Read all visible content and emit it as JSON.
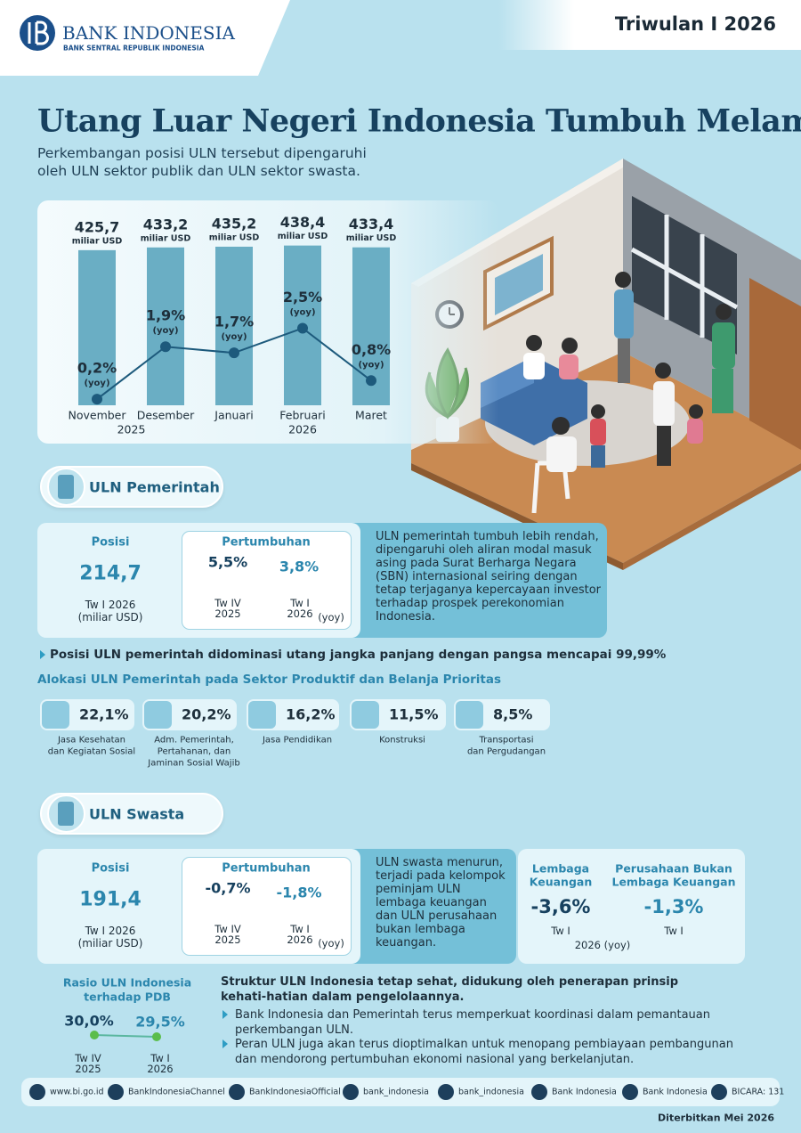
{
  "header": {
    "logo_name": "BANK INDONESIA",
    "logo_tagline": "BANK SENTRAL REPUBLIK INDONESIA",
    "period": "Triwulan I 2026"
  },
  "title": "Utang Luar Negeri Indonesia Tumbuh Melambat",
  "subtitle": [
    "Perkembangan posisi ULN tersebut dipengaruhi",
    "oleh ULN sektor publik dan ULN sektor swasta."
  ],
  "chart_data": {
    "type": "bar-line",
    "categories": [
      "November",
      "Desember",
      "Januari",
      "Februari",
      "Maret"
    ],
    "category_years": [
      "2025",
      null,
      null,
      "2026",
      null
    ],
    "ylim": [
      0,
      440
    ],
    "y2lim": [
      0,
      5.2
    ],
    "series": [
      {
        "color": "#6aaec4",
        "values": [
          425.7,
          433.2,
          435.2,
          438.4,
          433.4
        ],
        "value_labels": [
          "425,7",
          "433,2",
          "435,2",
          "438,4",
          "433,4"
        ],
        "unit_label": "miliar USD"
      },
      {
        "color": "#1d5a7c",
        "axis": "y2",
        "values": [
          0.2,
          1.9,
          1.7,
          2.5,
          0.8
        ],
        "value_labels": [
          "0,2%",
          "1,9%",
          "1,7%",
          "2,5%",
          "0,8%"
        ],
        "unit_label": "(yoy)"
      }
    ]
  },
  "pemerintah": {
    "heading": "ULN Pemerintah",
    "position": {
      "label": "Posisi",
      "value": "214,7",
      "period": "Tw I 2026",
      "unit": "(miliar USD)"
    },
    "growth": {
      "label": "Pertumbuhan",
      "values": [
        "5,5%",
        "3,8%"
      ],
      "periods": [
        {
          "quarter": "Tw IV",
          "year": "2025"
        },
        {
          "quarter": "Tw I",
          "year": "2026"
        }
      ],
      "unit": "(yoy)"
    },
    "description": "ULN pemerintah tumbuh lebih rendah, dipengaruhi oleh aliran modal masuk asing pada Surat Berharga Negara (SBN) internasional seiring dengan tetap terjaganya kepercayaan investor terhadap prospek perekonomian Indonesia.",
    "highlight": "Posisi ULN pemerintah didominasi utang jangka panjang dengan pangsa mencapai 99,99%",
    "allocation_title": "Alokasi ULN Pemerintah pada Sektor Produktif dan Belanja Prioritas",
    "allocation": [
      {
        "value": "22,1%",
        "label": [
          "Jasa Kesehatan",
          "dan Kegiatan Sosial"
        ]
      },
      {
        "value": "20,2%",
        "label": [
          "Adm. Pemerintah,",
          "Pertahanan, dan",
          "Jaminan Sosial Wajib"
        ]
      },
      {
        "value": "16,2%",
        "label": [
          "Jasa Pendidikan"
        ]
      },
      {
        "value": "11,5%",
        "label": [
          "Konstruksi"
        ]
      },
      {
        "value": "8,5%",
        "label": [
          "Transportasi",
          "dan Pergudangan"
        ]
      }
    ]
  },
  "swasta": {
    "heading": "ULN Swasta",
    "position": {
      "label": "Posisi",
      "value": "191,4",
      "period": "Tw I 2026",
      "unit": "(miliar USD)"
    },
    "growth": {
      "label": "Pertumbuhan",
      "values": [
        "-0,7%",
        "-1,8%"
      ],
      "periods": [
        {
          "quarter": "Tw IV",
          "year": "2025"
        },
        {
          "quarter": "Tw I",
          "year": "2026"
        }
      ],
      "unit": "(yoy)"
    },
    "description": "ULN swasta menurun, terjadi pada kelompok peminjam ULN lembaga keuangan dan ULN perusahaan bukan lembaga keuangan.",
    "breakdown": {
      "items": [
        {
          "label": [
            "Lembaga",
            "Keuangan"
          ],
          "value": "-3,6%",
          "period": "Tw I"
        },
        {
          "label": [
            "Perusahaan Bukan",
            "Lembaga Keuangan"
          ],
          "value": "-1,3%",
          "period": "Tw I"
        }
      ],
      "footnote": "2026 (yoy)"
    }
  },
  "ratio": {
    "title": [
      "Rasio ULN Indonesia",
      "terhadap PDB"
    ],
    "values": [
      "30,0%",
      "29,5%"
    ],
    "periods": [
      {
        "quarter": "Tw IV",
        "year": "2025"
      },
      {
        "quarter": "Tw I",
        "year": "2026"
      }
    ]
  },
  "closing": {
    "lead": "Struktur ULN Indonesia tetap sehat, didukung oleh penerapan prinsip kehati-hatian dalam pengelolaannya.",
    "bullets": [
      "Bank Indonesia dan Pemerintah terus memperkuat koordinasi dalam pemantauan perkembangan ULN.",
      "Peran ULN juga akan terus dioptimalkan untuk menopang pembiayaan pembangunan dan mendorong pertumbuhan ekonomi nasional yang berkelanjutan."
    ]
  },
  "footer": {
    "links": [
      "www.bi.go.id",
      "BankIndonesiaChannel",
      "BankIndonesiaOfficial",
      "bank_indonesia",
      "bank_indonesia",
      "Bank Indonesia",
      "Bank Indonesia",
      "BICARA: 131"
    ],
    "published": "Diterbitkan Mei 2026"
  }
}
